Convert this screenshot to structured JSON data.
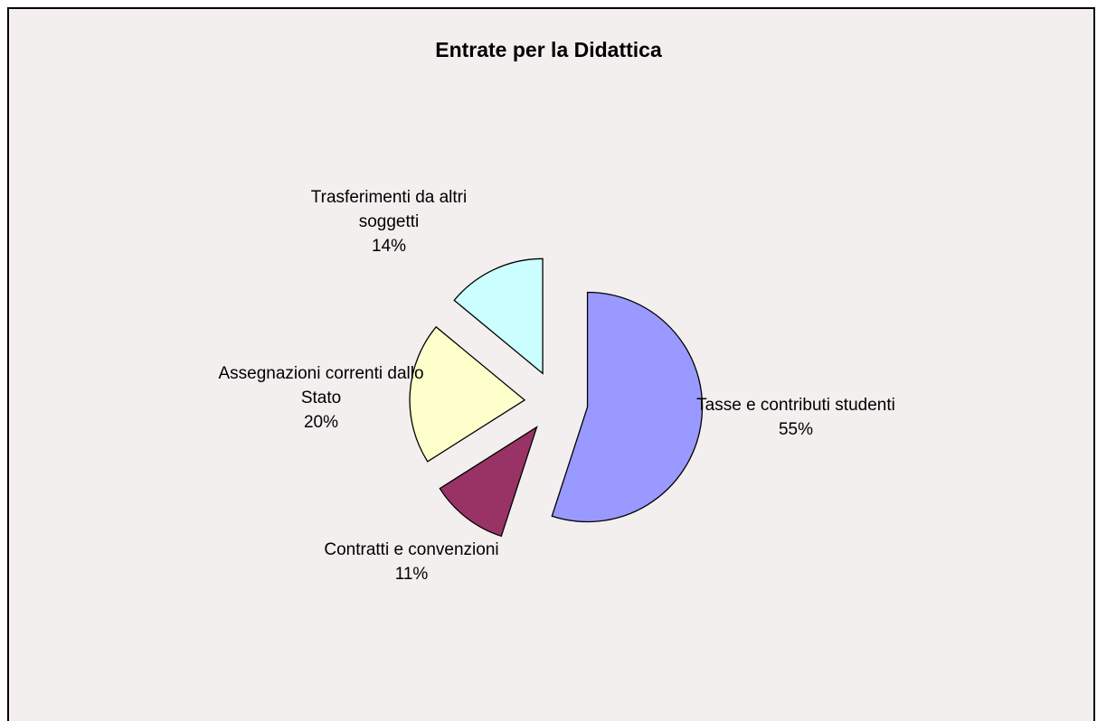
{
  "chart_data": {
    "type": "pie",
    "title": "Entrate per la Didattica",
    "categories": [
      "Tasse e contributi studenti",
      "Contratti e convenzioni",
      "Assegnazioni correnti dallo Stato",
      "Trasferimenti da altri soggetti"
    ],
    "values": [
      55,
      11,
      20,
      14
    ],
    "value_labels": [
      "55%",
      "11%",
      "20%",
      "14%"
    ],
    "colors": [
      "#9999ff",
      "#993366",
      "#ffffcc",
      "#ccffff"
    ]
  }
}
